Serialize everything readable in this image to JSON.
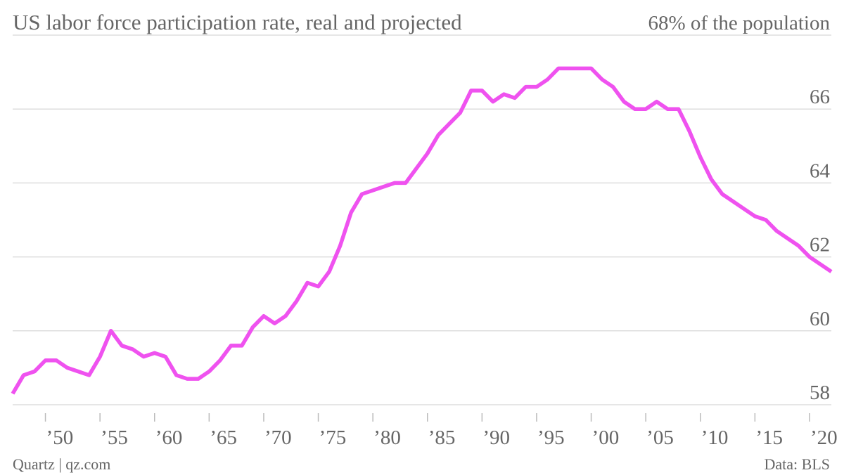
{
  "chart_data": {
    "type": "line",
    "title": "US labor force participation rate, real and projected",
    "source": "Data: BLS",
    "credit": "Quartz | qz.com",
    "x": [
      1947,
      1948,
      1949,
      1950,
      1951,
      1952,
      1953,
      1954,
      1955,
      1956,
      1957,
      1958,
      1959,
      1960,
      1961,
      1962,
      1963,
      1964,
      1965,
      1966,
      1967,
      1968,
      1969,
      1970,
      1971,
      1972,
      1973,
      1974,
      1975,
      1976,
      1977,
      1978,
      1979,
      1980,
      1981,
      1982,
      1983,
      1984,
      1985,
      1986,
      1987,
      1988,
      1989,
      1990,
      1991,
      1992,
      1993,
      1994,
      1995,
      1996,
      1997,
      1998,
      1999,
      2000,
      2001,
      2002,
      2003,
      2004,
      2005,
      2006,
      2007,
      2008,
      2009,
      2010,
      2011,
      2012,
      2013,
      2014,
      2015,
      2016,
      2017,
      2018,
      2019,
      2020,
      2021,
      2022
    ],
    "series": [
      {
        "color": "#ef52ef",
        "values": [
          58.3,
          58.8,
          58.9,
          59.2,
          59.2,
          59.0,
          58.9,
          58.8,
          59.3,
          60.0,
          59.6,
          59.5,
          59.3,
          59.4,
          59.3,
          58.8,
          58.7,
          58.7,
          58.9,
          59.2,
          59.6,
          59.6,
          60.1,
          60.4,
          60.2,
          60.4,
          60.8,
          61.3,
          61.2,
          61.6,
          62.3,
          63.2,
          63.7,
          63.8,
          63.9,
          64.0,
          64.0,
          64.4,
          64.8,
          65.3,
          65.6,
          65.9,
          66.5,
          66.5,
          66.2,
          66.4,
          66.3,
          66.6,
          66.6,
          66.8,
          67.1,
          67.1,
          67.1,
          67.1,
          66.8,
          66.6,
          66.2,
          66.0,
          66.0,
          66.2,
          66.0,
          66.0,
          65.4,
          64.7,
          64.1,
          63.7,
          63.5,
          63.3,
          63.1,
          63.0,
          62.7,
          62.5,
          62.3,
          62.0,
          61.8,
          61.6
        ]
      }
    ],
    "xlim": [
      1947,
      2022
    ],
    "xticks": [
      {
        "value": 1950,
        "label": "’50"
      },
      {
        "value": 1955,
        "label": "’55"
      },
      {
        "value": 1960,
        "label": "’60"
      },
      {
        "value": 1965,
        "label": "’65"
      },
      {
        "value": 1970,
        "label": "’70"
      },
      {
        "value": 1975,
        "label": "’75"
      },
      {
        "value": 1980,
        "label": "’80"
      },
      {
        "value": 1985,
        "label": "’85"
      },
      {
        "value": 1990,
        "label": "’90"
      },
      {
        "value": 1995,
        "label": "’95"
      },
      {
        "value": 2000,
        "label": "’00"
      },
      {
        "value": 2005,
        "label": "’05"
      },
      {
        "value": 2010,
        "label": "’10"
      },
      {
        "value": 2015,
        "label": "’15"
      },
      {
        "value": 2020,
        "label": "’20"
      }
    ],
    "ylim": [
      58,
      68
    ],
    "yticks": [
      58,
      60,
      62,
      64,
      66,
      {
        "value": 68,
        "label": "68% of the population"
      }
    ],
    "grid": true
  }
}
